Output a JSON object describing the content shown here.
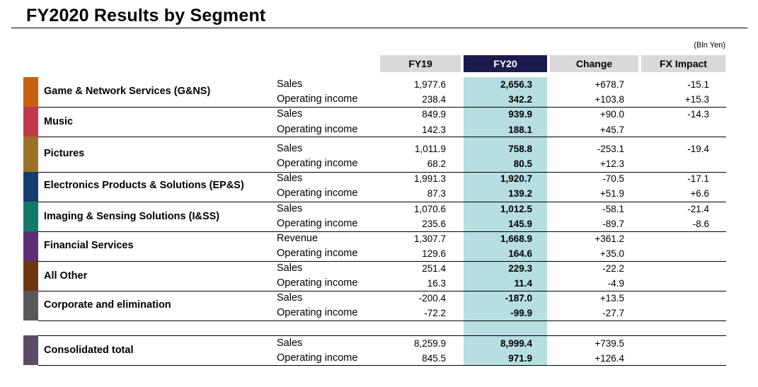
{
  "title": "FY2020 Results by Segment",
  "unit": "(Bln Yen)",
  "columns": {
    "fy19": "FY19",
    "fy20": "FY20",
    "change": "Change",
    "fx": "FX Impact"
  },
  "colors": {
    "fy20_header": "#1b1b4d",
    "fy20_column": "#b7dee1",
    "header": "#d9d9d9"
  },
  "segments": [
    {
      "name": "Game & Network Services (G&NS)",
      "color": "#c8610d",
      "rows": [
        {
          "label": "Sales",
          "fy19": "1,977.6",
          "fy20": "2,656.3",
          "change": "+678.7",
          "fx": "-15.1"
        },
        {
          "label": "Operating income",
          "fy19": "238.4",
          "fy20": "342.2",
          "change": "+103.8",
          "fx": "+15.3"
        }
      ]
    },
    {
      "name": "Music",
      "color": "#c0394a",
      "rows": [
        {
          "label": "Sales",
          "fy19": "849.9",
          "fy20": "939.9",
          "change": "+90.0",
          "fx": "-14.3"
        },
        {
          "label": "Operating income",
          "fy19": "142.3",
          "fy20": "188.1",
          "change": "+45.7",
          "fx": ""
        }
      ]
    },
    {
      "name": "Pictures",
      "color": "#9b7226",
      "rows": [
        {
          "label": "Sales",
          "fy19": "1,011.9",
          "fy20": "758.8",
          "change": "-253.1",
          "fx": "-19.4"
        },
        {
          "label": "Operating income",
          "fy19": "68.2",
          "fy20": "80.5",
          "change": "+12.3",
          "fx": ""
        }
      ]
    },
    {
      "name": "Electronics Products & Solutions (EP&S)",
      "color": "#133d70",
      "rows": [
        {
          "label": "Sales",
          "fy19": "1,991.3",
          "fy20": "1,920.7",
          "change": "-70.5",
          "fx": "-17.1"
        },
        {
          "label": "Operating income",
          "fy19": "87.3",
          "fy20": "139.2",
          "change": "+51.9",
          "fx": "+6.6"
        }
      ]
    },
    {
      "name": "Imaging & Sensing Solutions (I&SS)",
      "color": "#137a6b",
      "rows": [
        {
          "label": "Sales",
          "fy19": "1,070.6",
          "fy20": "1,012.5",
          "change": "-58.1",
          "fx": "-21.4"
        },
        {
          "label": "Operating income",
          "fy19": "235.6",
          "fy20": "145.9",
          "change": "-89.7",
          "fx": "-8.6"
        }
      ]
    },
    {
      "name": "Financial Services",
      "color": "#5b2f75",
      "rows": [
        {
          "label": "Revenue",
          "fy19": "1,307.7",
          "fy20": "1,668.9",
          "change": "+361.2",
          "fx": ""
        },
        {
          "label": "Operating income",
          "fy19": "129.6",
          "fy20": "164.6",
          "change": "+35.0",
          "fx": ""
        }
      ]
    },
    {
      "name": "All Other",
      "color": "#6e3610",
      "rows": [
        {
          "label": "Sales",
          "fy19": "251.4",
          "fy20": "229.3",
          "change": "-22.2",
          "fx": ""
        },
        {
          "label": "Operating income",
          "fy19": "16.3",
          "fy20": "11.4",
          "change": "-4.9",
          "fx": ""
        }
      ]
    },
    {
      "name": "Corporate and elimination",
      "color": "#595959",
      "rows": [
        {
          "label": "Sales",
          "fy19": "-200.4",
          "fy20": "-187.0",
          "change": "+13.5",
          "fx": ""
        },
        {
          "label": "Operating income",
          "fy19": "-72.2",
          "fy20": "-99.9",
          "change": "-27.7",
          "fx": ""
        }
      ]
    }
  ],
  "consolidated": {
    "name": "Consolidated total",
    "color": "#5e4a65",
    "rows": [
      {
        "label": "Sales",
        "fy19": "8,259.9",
        "fy20": "8,999.4",
        "change": "+739.5",
        "fx": ""
      },
      {
        "label": "Operating income",
        "fy19": "845.5",
        "fy20": "971.9",
        "change": "+126.4",
        "fx": ""
      }
    ]
  }
}
